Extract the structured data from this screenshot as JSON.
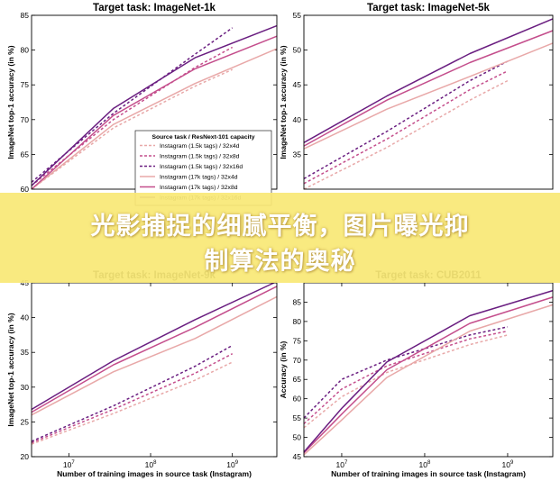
{
  "chart_data": [
    {
      "type": "line",
      "title": "Target task: ImageNet-1k",
      "xlabel": "",
      "ylabel": "ImageNet top-1 accuracy (in %)",
      "xscale": "log",
      "xlim": [
        3500000,
        3500000000
      ],
      "ylim": [
        60,
        85
      ],
      "yticks": [
        60,
        65,
        70,
        75,
        80,
        85
      ],
      "xticks": [],
      "grid": false,
      "legend": {
        "title": "Source task / ResNext-101 capacity",
        "placement": "lower-right",
        "entries": [
          "Instagram (1.5k tags) / 32x4d",
          "Instagram (1.5k tags) / 32x8d",
          "Instagram (1.5k tags) / 32x16d",
          "Instagram (17k tags) / 32x4d",
          "Instagram (17k tags) / 32x8d",
          "Instagram (17k tags) / 32x16d"
        ]
      },
      "series": [
        {
          "name": "Instagram (1.5k tags) / 32x4d",
          "color": "#e8a8a8",
          "dashed": true,
          "x": [
            3500000,
            35000000,
            350000000,
            1000000000
          ],
          "y": [
            60.0,
            68.8,
            74.8,
            77.2
          ]
        },
        {
          "name": "Instagram (1.5k tags) / 32x8d",
          "color": "#c44e8c",
          "dashed": true,
          "x": [
            3500000,
            35000000,
            350000000,
            1000000000
          ],
          "y": [
            60.5,
            70.0,
            77.5,
            80.4
          ]
        },
        {
          "name": "Instagram (1.5k tags) / 32x16d",
          "color": "#6a1e80",
          "dashed": true,
          "x": [
            3500000,
            35000000,
            350000000,
            1000000000
          ],
          "y": [
            61.0,
            70.9,
            79.4,
            83.2
          ]
        },
        {
          "name": "Instagram (17k tags) / 32x4d",
          "color": "#e8a8a8",
          "dashed": false,
          "x": [
            3500000,
            35000000,
            350000000,
            3500000000
          ],
          "y": [
            60.0,
            69.3,
            75.2,
            80.2
          ]
        },
        {
          "name": "Instagram (17k tags) / 32x8d",
          "color": "#c44e8c",
          "dashed": false,
          "x": [
            3500000,
            35000000,
            350000000,
            3500000000
          ],
          "y": [
            60.0,
            70.6,
            77.3,
            82.0
          ]
        },
        {
          "name": "Instagram (17k tags) / 32x16d",
          "color": "#6a1e80",
          "dashed": false,
          "x": [
            3500000,
            35000000,
            350000000,
            3500000000
          ],
          "y": [
            60.5,
            71.6,
            78.9,
            83.5
          ]
        }
      ]
    },
    {
      "type": "line",
      "title": "Target task: ImageNet-5k",
      "xlabel": "",
      "ylabel": "ImageNet top-1 accuracy (in %)",
      "xscale": "log",
      "xlim": [
        3500000,
        3500000000
      ],
      "ylim": [
        30,
        55
      ],
      "yticks": [
        35,
        40,
        45,
        50,
        55
      ],
      "xticks": [],
      "grid": false,
      "series": [
        {
          "name": "Instagram (1.5k tags) / 32x4d",
          "color": "#e8a8a8",
          "dashed": true,
          "x": [
            3500000,
            35000000,
            350000000,
            1000000000
          ],
          "y": [
            30.0,
            36.0,
            42.8,
            45.6
          ]
        },
        {
          "name": "Instagram (1.5k tags) / 32x8d",
          "color": "#c44e8c",
          "dashed": true,
          "x": [
            3500000,
            35000000,
            350000000,
            1000000000
          ],
          "y": [
            30.8,
            37.2,
            44.3,
            47.0
          ]
        },
        {
          "name": "Instagram (1.5k tags) / 32x16d",
          "color": "#6a1e80",
          "dashed": true,
          "x": [
            3500000,
            35000000,
            350000000,
            1000000000
          ],
          "y": [
            31.5,
            38.3,
            45.6,
            48.4
          ]
        },
        {
          "name": "Instagram (17k tags) / 32x4d",
          "color": "#e8a8a8",
          "dashed": false,
          "x": [
            3500000,
            35000000,
            350000000,
            3500000000
          ],
          "y": [
            35.8,
            41.5,
            46.2,
            51.0
          ]
        },
        {
          "name": "Instagram (17k tags) / 32x8d",
          "color": "#c44e8c",
          "dashed": false,
          "x": [
            3500000,
            35000000,
            350000000,
            3500000000
          ],
          "y": [
            36.2,
            42.8,
            48.2,
            52.8
          ]
        },
        {
          "name": "Instagram (17k tags) / 32x16d",
          "color": "#6a1e80",
          "dashed": false,
          "x": [
            3500000,
            35000000,
            350000000,
            3500000000
          ],
          "y": [
            36.7,
            43.4,
            49.5,
            54.5
          ]
        }
      ]
    },
    {
      "type": "line",
      "title": "Target task: ImageNet-9k",
      "xlabel": "Number of training images in source task (Instagram)",
      "ylabel": "ImageNet top-1 accuracy (in %)",
      "xscale": "log",
      "xlim": [
        3500000,
        3500000000
      ],
      "ylim": [
        20,
        45
      ],
      "yticks": [
        20,
        25,
        30,
        35,
        40,
        45
      ],
      "xticks": [
        {
          "value": 10000000,
          "label": "10",
          "exp": "7"
        },
        {
          "value": 100000000,
          "label": "10",
          "exp": "8"
        },
        {
          "value": 1000000000,
          "label": "10",
          "exp": "9"
        }
      ],
      "grid": false,
      "series": [
        {
          "name": "Instagram (1.5k tags) / 32x4d",
          "color": "#e8a8a8",
          "dashed": true,
          "x": [
            3500000,
            35000000,
            350000000,
            1000000000
          ],
          "y": [
            21.8,
            26.2,
            31.0,
            33.6
          ]
        },
        {
          "name": "Instagram (1.5k tags) / 32x8d",
          "color": "#c44e8c",
          "dashed": true,
          "x": [
            3500000,
            35000000,
            350000000,
            1000000000
          ],
          "y": [
            22.0,
            26.8,
            32.0,
            34.8
          ]
        },
        {
          "name": "Instagram (1.5k tags) / 32x16d",
          "color": "#6a1e80",
          "dashed": true,
          "x": [
            3500000,
            35000000,
            350000000,
            1000000000
          ],
          "y": [
            22.2,
            27.3,
            33.0,
            36.0
          ]
        },
        {
          "name": "Instagram (17k tags) / 32x4d",
          "color": "#e8a8a8",
          "dashed": false,
          "x": [
            3500000,
            35000000,
            350000000,
            3500000000
          ],
          "y": [
            26.0,
            32.2,
            37.0,
            43.0
          ]
        },
        {
          "name": "Instagram (17k tags) / 32x8d",
          "color": "#c44e8c",
          "dashed": false,
          "x": [
            3500000,
            35000000,
            350000000,
            3500000000
          ],
          "y": [
            26.4,
            33.2,
            38.6,
            44.5
          ]
        },
        {
          "name": "Instagram (17k tags) / 32x16d",
          "color": "#6a1e80",
          "dashed": false,
          "x": [
            3500000,
            35000000,
            350000000,
            3500000000
          ],
          "y": [
            26.8,
            33.8,
            39.7,
            45.2
          ]
        }
      ]
    },
    {
      "type": "line",
      "title": "Target task: CUB2011",
      "xlabel": "Number of training images in source task (Instagram)",
      "ylabel": "Accuracy (in %)",
      "xscale": "log",
      "xlim": [
        3500000,
        3500000000
      ],
      "ylim": [
        45,
        90
      ],
      "yticks": [
        45,
        50,
        55,
        60,
        65,
        70,
        75,
        80,
        85
      ],
      "xticks": [
        {
          "value": 10000000,
          "label": "10",
          "exp": "7"
        },
        {
          "value": 100000000,
          "label": "10",
          "exp": "8"
        },
        {
          "value": 1000000000,
          "label": "10",
          "exp": "9"
        }
      ],
      "grid": false,
      "series": [
        {
          "name": "Instagram (1.5k tags) / 32x4d",
          "color": "#e8a8a8",
          "dashed": true,
          "x": [
            3500000,
            10000000,
            35000000,
            350000000,
            1000000000
          ],
          "y": [
            52.5,
            60.5,
            66.8,
            74.0,
            76.5
          ]
        },
        {
          "name": "Instagram (1.5k tags) / 32x8d",
          "color": "#c44e8c",
          "dashed": true,
          "x": [
            3500000,
            10000000,
            35000000,
            350000000,
            1000000000
          ],
          "y": [
            53.5,
            62.5,
            68.5,
            75.5,
            77.5
          ]
        },
        {
          "name": "Instagram (1.5k tags) / 32x16d",
          "color": "#6a1e80",
          "dashed": true,
          "x": [
            3500000,
            10000000,
            35000000,
            350000000,
            1000000000
          ],
          "y": [
            55.0,
            65.0,
            70.0,
            76.5,
            78.6
          ]
        },
        {
          "name": "Instagram (17k tags) / 32x4d",
          "color": "#e8a8a8",
          "dashed": false,
          "x": [
            3500000,
            10000000,
            35000000,
            350000000,
            3500000000
          ],
          "y": [
            45.5,
            54.5,
            65.5,
            77.5,
            84.3
          ]
        },
        {
          "name": "Instagram (17k tags) / 32x8d",
          "color": "#c44e8c",
          "dashed": false,
          "x": [
            3500000,
            10000000,
            35000000,
            350000000,
            3500000000
          ],
          "y": [
            46.0,
            56.0,
            67.5,
            79.5,
            86.3
          ]
        },
        {
          "name": "Instagram (17k tags) / 32x16d",
          "color": "#6a1e80",
          "dashed": false,
          "x": [
            3500000,
            10000000,
            35000000,
            350000000,
            3500000000
          ],
          "y": [
            46.2,
            57.5,
            69.5,
            81.5,
            88.0
          ]
        }
      ]
    }
  ],
  "overlay": {
    "line1": "光影捕捉的细腻平衡，图片曝光抑",
    "line2": "制算法的奥秘",
    "background": "#f9e876",
    "text_color": "#ffffff"
  }
}
